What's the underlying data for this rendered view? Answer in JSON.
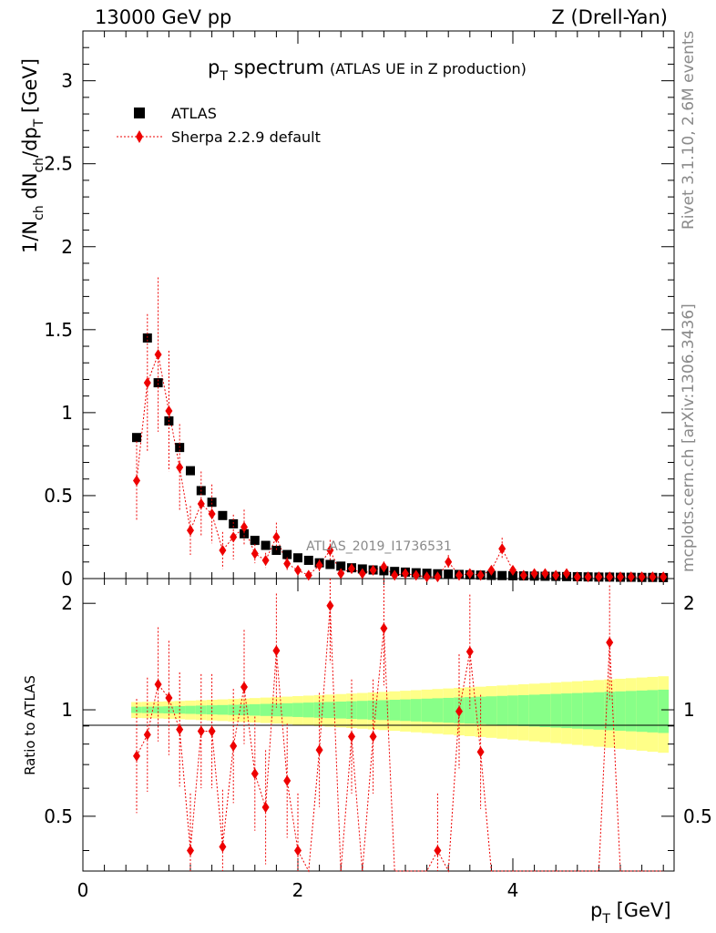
{
  "header": {
    "energy": "13000 GeV pp",
    "process": "Z (Drell-Yan)"
  },
  "side_text": {
    "rivet": "Rivet 3.1.10,  2.6M events",
    "mcplots": "mcplots.cern.ch [arXiv:1306.3436]"
  },
  "chart_data": {
    "type": "scatter",
    "title": {
      "main": "p",
      "sub": "T",
      "rest": " spectrum",
      "small": "(ATLAS UE in Z production)"
    },
    "analysis_label": "ATLAS_2019_I1736531",
    "xlabel": {
      "main": "p",
      "sub": "T",
      "rest": " [GeV]"
    },
    "ylabel": {
      "p1": "1/N",
      "s1": "ch",
      "p2": " dN",
      "s2": "ch",
      "p3": "/dp",
      "s3": "T",
      "p4": " [GeV]"
    },
    "ratio_ylabel": "Ratio to ATLAS",
    "xlim": [
      0,
      5.5
    ],
    "ylim": [
      0,
      3.3
    ],
    "ratio_ylim": [
      0.35,
      2.35
    ],
    "x_ticks": [
      "0",
      "2",
      "4"
    ],
    "y_ticks": [
      "0",
      "0.5",
      "1",
      "1.5",
      "2",
      "2.5",
      "3"
    ],
    "ratio_ticks": [
      "0.5",
      "1",
      "2"
    ],
    "legend": {
      "data": "ATLAS",
      "mc": "Sherpa 2.2.9 default"
    },
    "x": [
      0.5,
      0.6,
      0.7,
      0.8,
      0.9,
      1.0,
      1.1,
      1.2,
      1.3,
      1.4,
      1.5,
      1.6,
      1.7,
      1.8,
      1.9,
      2.0,
      2.1,
      2.2,
      2.3,
      2.4,
      2.5,
      2.6,
      2.7,
      2.8,
      2.9,
      3.0,
      3.1,
      3.2,
      3.3,
      3.4,
      3.5,
      3.6,
      3.7,
      3.8,
      3.9,
      4.0,
      4.1,
      4.2,
      4.3,
      4.4,
      4.5,
      4.6,
      4.7,
      4.8,
      4.9,
      5.0,
      5.1,
      5.2,
      5.3,
      5.4
    ],
    "series": [
      {
        "name": "ATLAS",
        "values": [
          0.85,
          1.45,
          1.18,
          0.95,
          0.79,
          0.65,
          0.53,
          0.46,
          0.38,
          0.33,
          0.27,
          0.23,
          0.2,
          0.17,
          0.145,
          0.125,
          0.11,
          0.095,
          0.085,
          0.075,
          0.065,
          0.058,
          0.052,
          0.047,
          0.043,
          0.039,
          0.035,
          0.032,
          0.029,
          0.027,
          0.025,
          0.023,
          0.021,
          0.019,
          0.018,
          0.017,
          0.016,
          0.015,
          0.014,
          0.013,
          0.012,
          0.011,
          0.01,
          0.009,
          0.009,
          0.008,
          0.008,
          0.007,
          0.007,
          0.006
        ]
      },
      {
        "name": "Sherpa 2.2.9 default",
        "values": [
          0.59,
          1.18,
          1.35,
          1.01,
          0.67,
          0.29,
          0.45,
          0.39,
          0.17,
          0.25,
          0.31,
          0.15,
          0.11,
          0.25,
          0.09,
          0.05,
          0.02,
          0.08,
          0.17,
          0.03,
          0.06,
          0.03,
          0.05,
          0.07,
          0.02,
          0.03,
          0.02,
          0.01,
          0.01,
          0.1,
          0.02,
          0.03,
          0.02,
          0.05,
          0.18,
          0.05,
          0.02,
          0.03,
          0.03,
          0.02,
          0.03,
          0.01,
          0.01,
          0.01,
          0.01,
          0.01,
          0.01,
          0.01,
          0.01,
          0.01
        ]
      }
    ],
    "ratio": [
      0.74,
      0.85,
      1.18,
      1.08,
      0.88,
      0.4,
      0.87,
      0.87,
      0.41,
      0.79,
      1.16,
      0.66,
      0.53,
      1.47,
      0.63,
      0.4,
      null,
      0.77,
      1.97,
      null,
      0.84,
      null,
      0.84,
      1.7,
      null,
      null,
      null,
      null,
      0.4,
      null,
      0.99,
      1.46,
      0.76,
      null,
      null,
      null,
      null,
      null,
      null,
      null,
      null,
      null,
      null,
      null,
      1.55,
      null,
      null,
      null,
      null,
      null
    ]
  }
}
